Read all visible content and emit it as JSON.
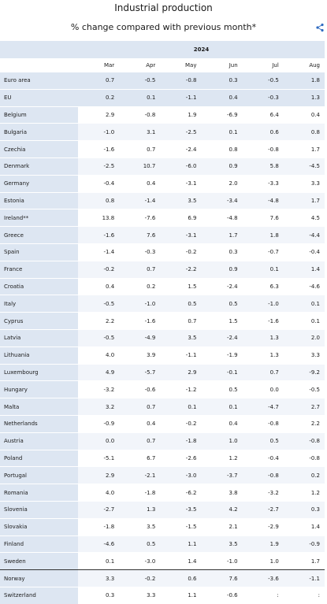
{
  "header": {
    "title": "Industrial production",
    "subtitle": "% change compared with previous month*",
    "share_icon": "share-icon"
  },
  "table": {
    "year": "2024",
    "months": [
      "Mar",
      "Apr",
      "May",
      "Jun",
      "Jul",
      "Aug"
    ],
    "rows": [
      {
        "name": "Euro area",
        "values": [
          "0.7",
          "-0.5",
          "-0.8",
          "0.3",
          "-0.5",
          "1.8"
        ],
        "type": "agg"
      },
      {
        "name": "EU",
        "values": [
          "0.2",
          "0.1",
          "-1.1",
          "0.4",
          "-0.3",
          "1.3"
        ],
        "type": "agg"
      },
      {
        "name": "Belgium",
        "values": [
          "2.9",
          "-0.8",
          "1.9",
          "-6.9",
          "6.4",
          "0.4"
        ]
      },
      {
        "name": "Bulgaria",
        "values": [
          "-1.0",
          "3.1",
          "-2.5",
          "0.1",
          "0.6",
          "0.8"
        ]
      },
      {
        "name": "Czechia",
        "values": [
          "-1.6",
          "0.7",
          "-2.4",
          "0.8",
          "-0.8",
          "1.7"
        ]
      },
      {
        "name": "Denmark",
        "values": [
          "-2.5",
          "10.7",
          "-6.0",
          "0.9",
          "5.8",
          "-4.5"
        ]
      },
      {
        "name": "Germany",
        "values": [
          "-0.4",
          "0.4",
          "-3.1",
          "2.0",
          "-3.3",
          "3.3"
        ]
      },
      {
        "name": "Estonia",
        "values": [
          "0.8",
          "-1.4",
          "3.5",
          "-3.4",
          "-4.8",
          "1.7"
        ]
      },
      {
        "name": "Ireland**",
        "values": [
          "13.8",
          "-7.6",
          "6.9",
          "-4.8",
          "7.6",
          "4.5"
        ]
      },
      {
        "name": "Greece",
        "values": [
          "-1.6",
          "7.6",
          "-3.1",
          "1.7",
          "1.8",
          "-4.4"
        ]
      },
      {
        "name": "Spain",
        "values": [
          "-1.4",
          "-0.3",
          "-0.2",
          "0.3",
          "-0.7",
          "-0.4"
        ]
      },
      {
        "name": "France",
        "values": [
          "-0.2",
          "0.7",
          "-2.2",
          "0.9",
          "0.1",
          "1.4"
        ]
      },
      {
        "name": "Croatia",
        "values": [
          "0.4",
          "0.2",
          "1.5",
          "-2.4",
          "6.3",
          "-4.6"
        ]
      },
      {
        "name": "Italy",
        "values": [
          "-0.5",
          "-1.0",
          "0.5",
          "0.5",
          "-1.0",
          "0.1"
        ]
      },
      {
        "name": "Cyprus",
        "values": [
          "2.2",
          "-1.6",
          "0.7",
          "1.5",
          "-1.6",
          "0.1"
        ]
      },
      {
        "name": "Latvia",
        "values": [
          "-0.5",
          "-4.9",
          "3.5",
          "-2.4",
          "1.3",
          "2.0"
        ]
      },
      {
        "name": "Lithuania",
        "values": [
          "4.0",
          "3.9",
          "-1.1",
          "-1.9",
          "1.3",
          "3.3"
        ]
      },
      {
        "name": "Luxembourg",
        "values": [
          "4.9",
          "-5.7",
          "2.9",
          "-0.1",
          "0.7",
          "-9.2"
        ]
      },
      {
        "name": "Hungary",
        "values": [
          "-3.2",
          "-0.6",
          "-1.2",
          "0.5",
          "0.0",
          "-0.5"
        ]
      },
      {
        "name": "Malta",
        "values": [
          "3.2",
          "0.7",
          "0.1",
          "0.1",
          "-4.7",
          "2.7"
        ]
      },
      {
        "name": "Netherlands",
        "values": [
          "-0.9",
          "0.4",
          "-0.2",
          "0.4",
          "-0.8",
          "2.2"
        ]
      },
      {
        "name": "Austria",
        "values": [
          "0.0",
          "0.7",
          "-1.8",
          "1.0",
          "0.5",
          "-0.8"
        ]
      },
      {
        "name": "Poland",
        "values": [
          "-5.1",
          "6.7",
          "-2.6",
          "1.2",
          "-0.4",
          "-0.8"
        ]
      },
      {
        "name": "Portugal",
        "values": [
          "2.9",
          "-2.1",
          "-3.0",
          "-3.7",
          "-0.8",
          "0.2"
        ]
      },
      {
        "name": "Romania",
        "values": [
          "4.0",
          "-1.8",
          "-6.2",
          "3.8",
          "-3.2",
          "1.2"
        ]
      },
      {
        "name": "Slovenia",
        "values": [
          "-2.7",
          "1.3",
          "-3.5",
          "4.2",
          "-2.7",
          "0.3"
        ]
      },
      {
        "name": "Slovakia",
        "values": [
          "-1.8",
          "3.5",
          "-1.5",
          "2.1",
          "-2.9",
          "1.4"
        ]
      },
      {
        "name": "Finland",
        "values": [
          "-4.6",
          "0.5",
          "1.1",
          "3.5",
          "1.9",
          "-0.9"
        ]
      },
      {
        "name": "Sweden",
        "values": [
          "0.1",
          "-3.0",
          "1.4",
          "-1.0",
          "1.0",
          "1.7"
        ]
      },
      {
        "name": "Norway",
        "values": [
          "3.3",
          "-0.2",
          "0.6",
          "7.6",
          "-3.6",
          "-1.1"
        ],
        "type": "sep"
      },
      {
        "name": "Switzerland",
        "values": [
          "0.3",
          "3.3",
          "1.1",
          "-0.6",
          ":",
          ":"
        ]
      }
    ]
  }
}
